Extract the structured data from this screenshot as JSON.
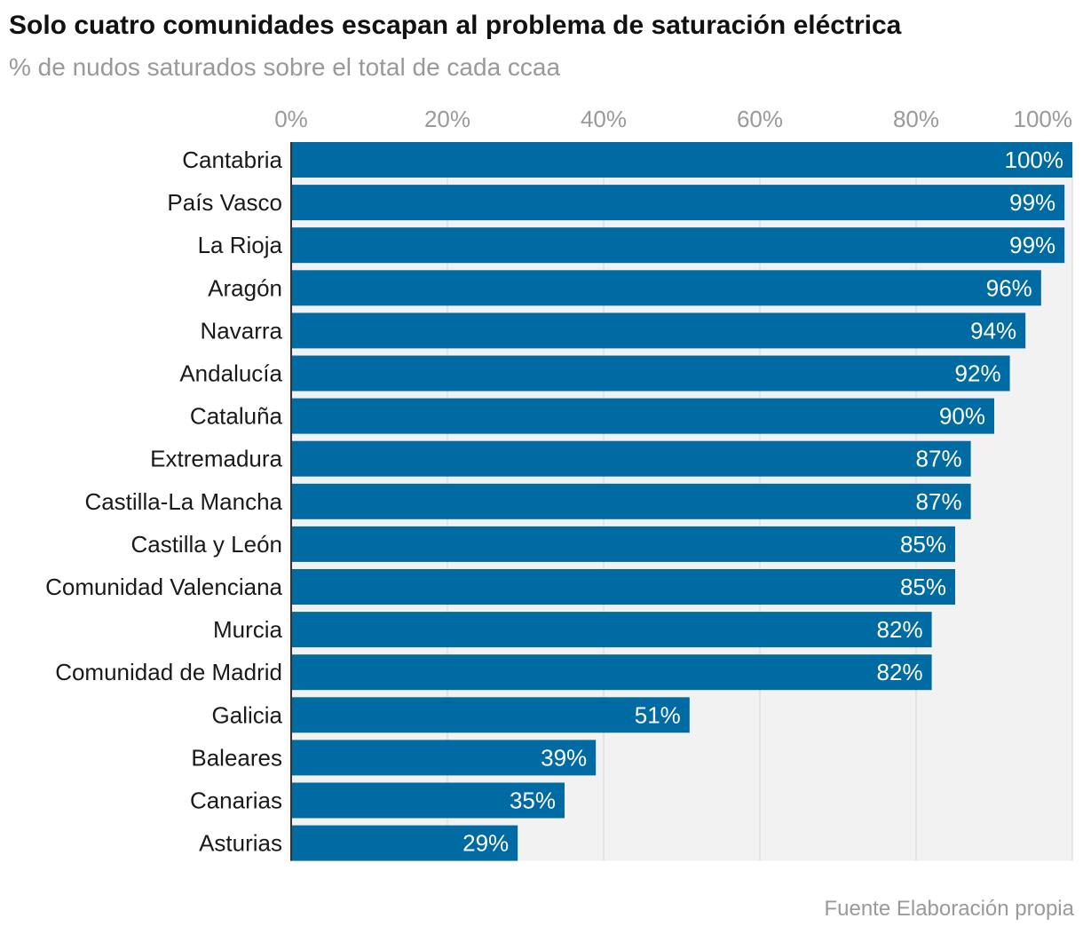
{
  "chart_data": {
    "type": "bar",
    "orientation": "horizontal",
    "title": "Solo cuatro comunidades escapan al problema de saturación eléctrica",
    "subtitle": "% de nudos saturados sobre el total de cada ccaa",
    "source": "Fuente Elaboración propia",
    "categories": [
      "Cantabria",
      "País Vasco",
      "La Rioja",
      "Aragón",
      "Navarra",
      "Andalucía",
      "Cataluña",
      "Extremadura",
      "Castilla-La Mancha",
      "Castilla y León",
      "Comunidad Valenciana",
      "Murcia",
      "Comunidad de Madrid",
      "Galicia",
      "Baleares",
      "Canarias",
      "Asturias"
    ],
    "values": [
      100,
      99,
      99,
      96,
      94,
      92,
      90,
      87,
      87,
      85,
      85,
      82,
      82,
      51,
      39,
      35,
      29
    ],
    "value_labels": [
      "100%",
      "99%",
      "99%",
      "96%",
      "94%",
      "92%",
      "90%",
      "87%",
      "87%",
      "85%",
      "85%",
      "82%",
      "82%",
      "51%",
      "39%",
      "35%",
      "29%"
    ],
    "xlim": [
      0,
      100
    ],
    "xticks": [
      0,
      20,
      40,
      60,
      80,
      100
    ],
    "xtick_labels": [
      "0%",
      "20%",
      "40%",
      "60%",
      "80%",
      "100%"
    ],
    "axis_position": "top",
    "grid": true,
    "colors": {
      "bar": "#006ba2",
      "track": "#f2f2f2",
      "grid": "#dcdcdc"
    }
  }
}
